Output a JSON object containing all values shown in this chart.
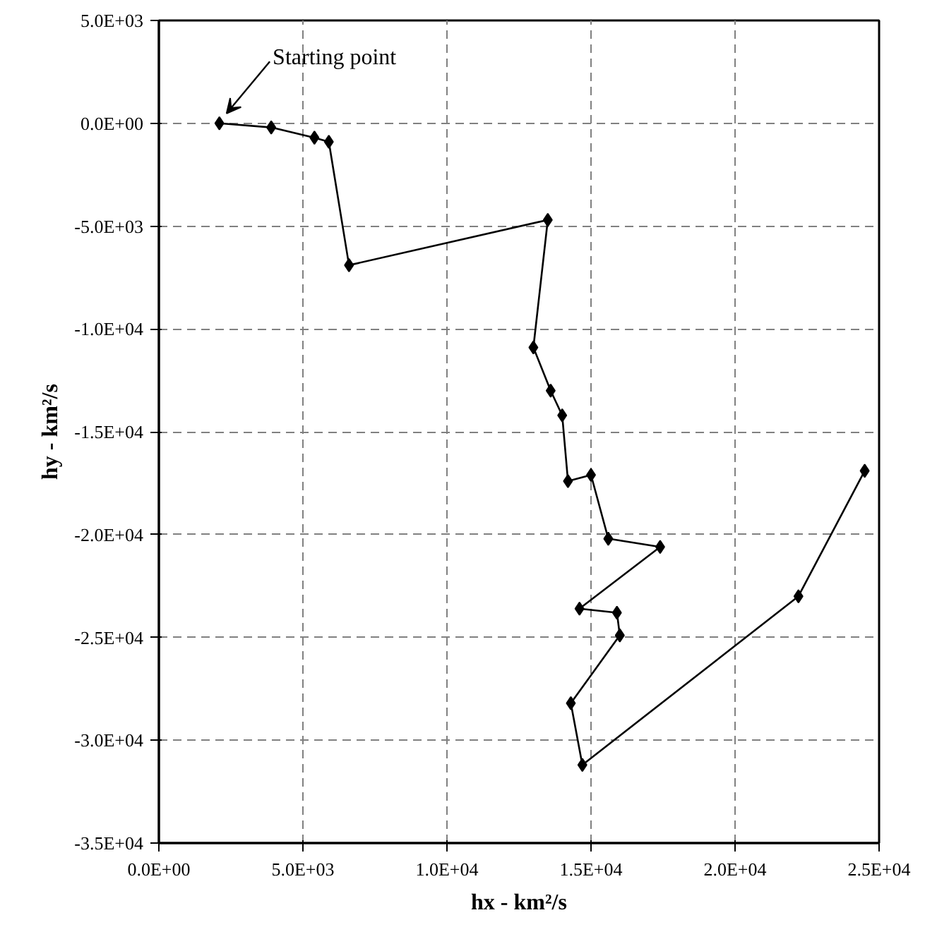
{
  "chart_data": {
    "type": "line",
    "xlabel": "hx - km²/s",
    "ylabel": "hy - km²/s",
    "marker": "diamond",
    "line_style": "solid",
    "grid": true,
    "xlim": [
      0,
      25000
    ],
    "ylim": [
      -35000,
      5000
    ],
    "xticks": [
      {
        "value": 0,
        "label": "0.0E+00"
      },
      {
        "value": 5000,
        "label": "5.0E+03"
      },
      {
        "value": 10000,
        "label": "1.0E+04"
      },
      {
        "value": 15000,
        "label": "1.5E+04"
      },
      {
        "value": 20000,
        "label": "2.0E+04"
      },
      {
        "value": 25000,
        "label": "2.5E+04"
      }
    ],
    "yticks": [
      {
        "value": 5000,
        "label": "5.0E+03"
      },
      {
        "value": 0,
        "label": "0.0E+00"
      },
      {
        "value": -5000,
        "label": "-5.0E+03"
      },
      {
        "value": -10000,
        "label": "-1.0E+04"
      },
      {
        "value": -15000,
        "label": "-1.5E+04"
      },
      {
        "value": -20000,
        "label": "-2.0E+04"
      },
      {
        "value": -25000,
        "label": "-2.5E+04"
      },
      {
        "value": -30000,
        "label": "-3.0E+04"
      },
      {
        "value": -35000,
        "label": "-3.5E+04"
      }
    ],
    "annotations": [
      {
        "text": "Starting point",
        "x": 2100,
        "y": 0
      }
    ],
    "series": [
      {
        "color": "#000000",
        "x": [
          2100,
          3900,
          5400,
          5900,
          6600,
          13500,
          13000,
          13600,
          14000,
          14200,
          15000,
          15600,
          17400,
          14600,
          15900,
          16000,
          14300,
          14700,
          22200,
          24500
        ],
        "values": [
          0,
          -200,
          -700,
          -900,
          -6900,
          -4700,
          -10900,
          -13000,
          -14200,
          -17400,
          -17100,
          -20200,
          -20600,
          -23600,
          -23800,
          -24900,
          -28200,
          -31200,
          -23000,
          -16900
        ]
      }
    ]
  }
}
